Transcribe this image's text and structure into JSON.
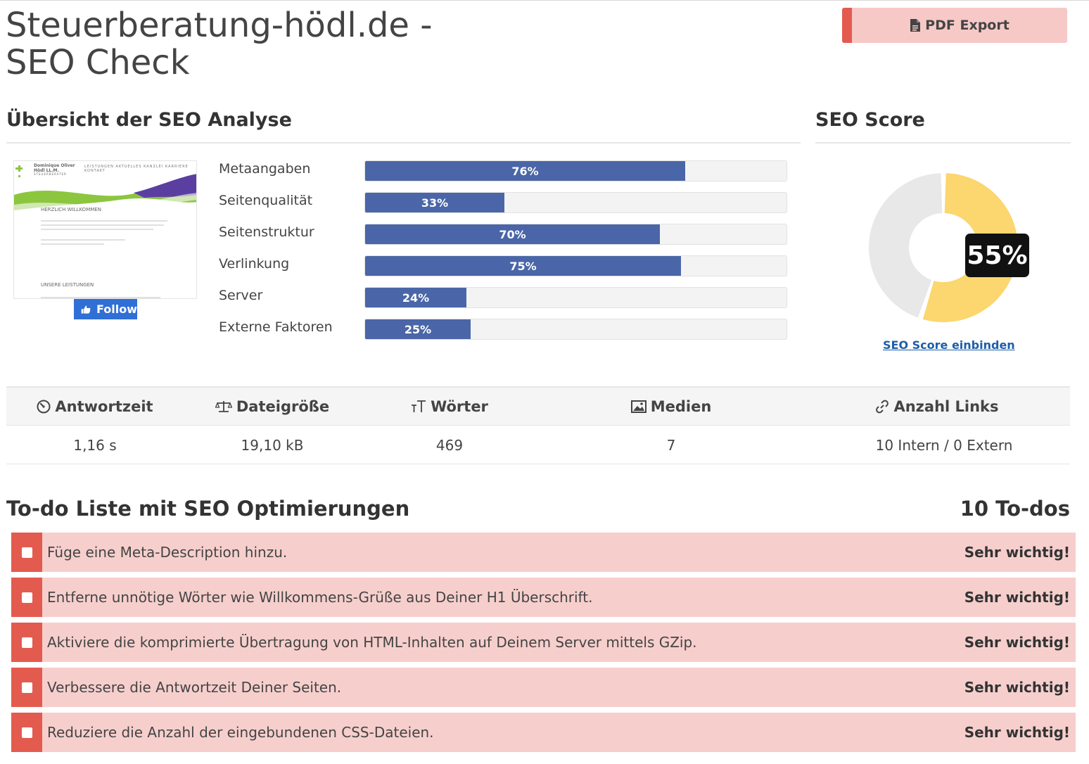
{
  "header": {
    "title": "Steuerberatung-hödl.de - SEO Check",
    "pdf_label": "PDF Export"
  },
  "overview": {
    "heading": "Übersicht der SEO Analyse",
    "thumbnail": {
      "brand_line1": "Dominique Oliver",
      "brand_line2": "Hödl LL.M.",
      "brand_line3": "STEUERBERATER",
      "nav": "LEISTUNGEN   AKTUELLES   KANZLEI   KARRIERE   KONTAKT",
      "welcome": "HERZLICH WILLKOMMEN",
      "services": "UNSERE LEISTUNGEN"
    },
    "follow_label": "Follow",
    "metrics": [
      {
        "label": "Metaangaben",
        "value": 76,
        "text": "76%"
      },
      {
        "label": "Seitenqualität",
        "value": 33,
        "text": "33%"
      },
      {
        "label": "Seitenstruktur",
        "value": 70,
        "text": "70%"
      },
      {
        "label": "Verlinkung",
        "value": 75,
        "text": "75%"
      },
      {
        "label": "Server",
        "value": 24,
        "text": "24%"
      },
      {
        "label": "Externe Faktoren",
        "value": 25,
        "text": "25%"
      }
    ],
    "bar_color": "#4a66a8"
  },
  "score": {
    "heading": "SEO Score",
    "value": 55,
    "text": "55%",
    "link": "SEO Score einbinden",
    "fill_color": "#fcd66e",
    "rest_color": "#e8e8e8"
  },
  "stats": {
    "headers": [
      "Antwortzeit",
      "Dateigröße",
      "Wörter",
      "Medien",
      "Anzahl Links"
    ],
    "values": [
      "1,16 s",
      "19,10 kB",
      "469",
      "7",
      "10 Intern / 0 Extern"
    ]
  },
  "todos": {
    "heading": "To-do Liste mit SEO Optimierungen",
    "count": "10 To-dos",
    "items": [
      {
        "text": "Füge eine Meta-Description hinzu.",
        "priority": "Sehr wichtig!"
      },
      {
        "text": "Entferne unnötige Wörter wie Willkommens-Grüße aus Deiner H1 Überschrift.",
        "priority": "Sehr wichtig!"
      },
      {
        "text": "Aktiviere die komprimierte Übertragung von HTML-Inhalten auf Deinem Server mittels GZip.",
        "priority": "Sehr wichtig!"
      },
      {
        "text": "Verbessere die Antwortzeit Deiner Seiten.",
        "priority": "Sehr wichtig!"
      },
      {
        "text": "Reduziere die Anzahl der eingebundenen CSS-Dateien.",
        "priority": "Sehr wichtig!"
      }
    ],
    "accent_color": "#e35b4f",
    "row_color": "#f6cfcd"
  }
}
